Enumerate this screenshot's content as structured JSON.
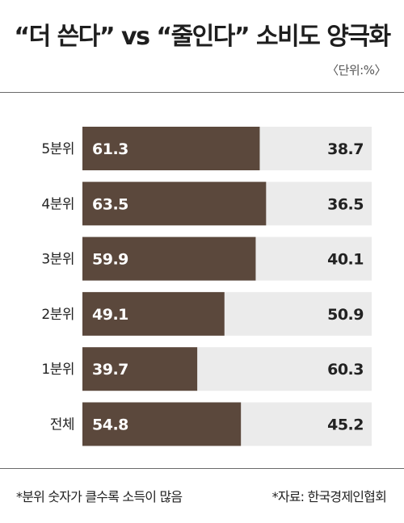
{
  "title": "“더 쓴다” vs “줄인다” 소비도 양극화",
  "unit": "〈단위:%〉",
  "footnote_left": "*분위 숫자가 클수록 소득이 많음",
  "footnote_right": "*자료: 한국경제인협회",
  "colors": {
    "spend_more": "#5b483c",
    "cut_back": "#ebebeb"
  },
  "chart_data": {
    "type": "bar",
    "stacked": true,
    "orientation": "horizontal",
    "categories": [
      "5분위",
      "4분위",
      "3분위",
      "2분위",
      "1분위",
      "전체"
    ],
    "series": [
      {
        "values": [
          61.3,
          63.5,
          59.9,
          49.1,
          39.7,
          54.8
        ]
      },
      {
        "values": [
          38.7,
          36.5,
          40.1,
          50.9,
          60.3,
          45.2
        ]
      }
    ],
    "xlim": [
      0,
      100
    ],
    "title": "“더 쓴다” vs “줄인다” 소비도 양극화"
  }
}
